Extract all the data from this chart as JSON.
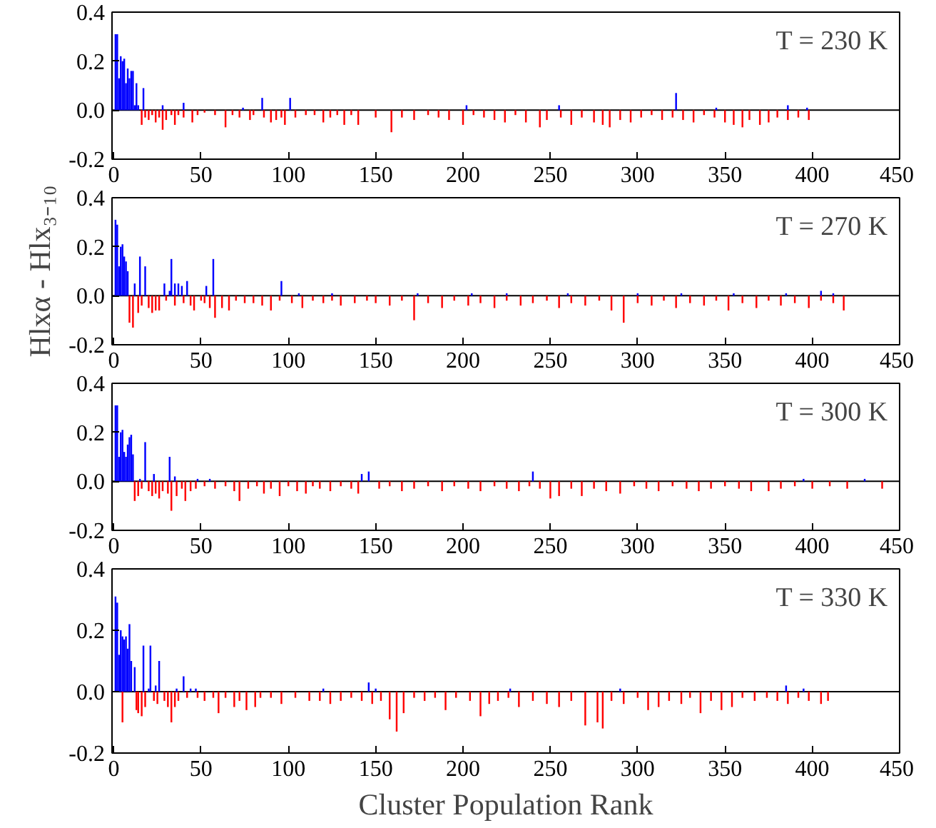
{
  "chart_data": [
    {
      "type": "bar",
      "annotations": [
        "T = 230 K"
      ],
      "xlim": [
        -1,
        450
      ],
      "xticks": [
        0,
        50,
        100,
        150,
        200,
        250,
        300,
        350,
        400,
        450
      ],
      "ylim": [
        -0.2,
        0.4
      ],
      "yticks": [
        {
          "value": -0.2,
          "label": "-0.2"
        },
        {
          "value": 0,
          "label": "0.0"
        },
        {
          "value": 0.2,
          "label": "0.2"
        },
        {
          "value": 0.4,
          "label": "0.4"
        }
      ],
      "ref_lines": [
        {
          "axis": "y",
          "value": 0,
          "color": "#000000"
        }
      ],
      "series": [
        {
          "color": "#0000ff",
          "x": [
            1,
            2,
            3,
            4,
            5,
            6,
            7,
            8,
            9,
            10,
            11,
            12,
            13,
            14,
            17,
            28,
            40,
            74,
            85,
            101,
            202,
            255,
            322,
            345,
            386,
            397
          ],
          "values": [
            0.31,
            0.31,
            0.13,
            0.22,
            0.2,
            0.21,
            0.11,
            0.17,
            0.13,
            0.16,
            0.16,
            0.02,
            0.11,
            0.02,
            0.09,
            0.02,
            0.03,
            0.01,
            0.05,
            0.05,
            0.02,
            0.02,
            0.07,
            0.01,
            0.02,
            0.01
          ]
        },
        {
          "color": "#ff0000",
          "x": [
            16,
            18,
            20,
            22,
            24,
            26,
            28,
            30,
            33,
            35,
            37,
            40,
            45,
            48,
            52,
            58,
            64,
            68,
            72,
            78,
            80,
            86,
            90,
            93,
            96,
            98,
            104,
            110,
            115,
            120,
            124,
            128,
            132,
            136,
            140,
            150,
            159,
            165,
            172,
            180,
            186,
            192,
            200,
            206,
            212,
            218,
            224,
            230,
            236,
            244,
            248,
            256,
            262,
            268,
            275,
            280,
            284,
            290,
            296,
            302,
            308,
            314,
            320,
            326,
            332,
            338,
            344,
            350,
            355,
            360,
            364,
            370,
            375,
            380,
            386,
            392,
            398
          ],
          "values": [
            -0.06,
            -0.03,
            -0.04,
            -0.02,
            -0.05,
            -0.03,
            -0.08,
            -0.04,
            -0.02,
            -0.06,
            -0.02,
            -0.03,
            -0.05,
            -0.02,
            -0.01,
            -0.02,
            -0.07,
            -0.02,
            -0.03,
            -0.04,
            -0.02,
            -0.03,
            -0.05,
            -0.04,
            -0.03,
            -0.06,
            -0.03,
            -0.02,
            -0.02,
            -0.05,
            -0.03,
            -0.02,
            -0.06,
            -0.02,
            -0.06,
            -0.03,
            -0.09,
            -0.03,
            -0.04,
            -0.02,
            -0.03,
            -0.04,
            -0.06,
            -0.02,
            -0.03,
            -0.04,
            -0.05,
            -0.02,
            -0.05,
            -0.07,
            -0.04,
            -0.03,
            -0.06,
            -0.03,
            -0.05,
            -0.06,
            -0.07,
            -0.04,
            -0.05,
            -0.03,
            -0.02,
            -0.04,
            -0.03,
            -0.04,
            -0.05,
            -0.02,
            -0.03,
            -0.05,
            -0.06,
            -0.07,
            -0.04,
            -0.06,
            -0.05,
            -0.03,
            -0.04,
            -0.03,
            -0.04
          ]
        }
      ]
    },
    {
      "type": "bar",
      "ylabel": "Hlxα - Hlx₃₋₁₀",
      "annotations": [
        "T = 270 K"
      ],
      "xlim": [
        -1,
        450
      ],
      "xticks": [
        0,
        50,
        100,
        150,
        200,
        250,
        300,
        350,
        400,
        450
      ],
      "ylim": [
        -0.2,
        0.4
      ],
      "yticks": [
        {
          "value": -0.2,
          "label": "-0.2"
        },
        {
          "value": 0,
          "label": "0.0"
        },
        {
          "value": 0.2,
          "label": "0.2"
        },
        {
          "value": 0.4,
          "label": "0.4"
        }
      ],
      "ref_lines": [
        {
          "axis": "y",
          "value": 0,
          "color": "#000000"
        }
      ],
      "series": [
        {
          "color": "#0000ff",
          "x": [
            1,
            2,
            3,
            4,
            5,
            6,
            7,
            8,
            12,
            15,
            18,
            29,
            32,
            33,
            35,
            37,
            39,
            42,
            53,
            57,
            96,
            106,
            125,
            174,
            205,
            225,
            260,
            300,
            325,
            355,
            385,
            405,
            412
          ],
          "values": [
            0.31,
            0.29,
            0.12,
            0.2,
            0.21,
            0.16,
            0.14,
            0.1,
            0.05,
            0.16,
            0.12,
            0.05,
            0.02,
            0.15,
            0.05,
            0.05,
            0.04,
            0.06,
            0.04,
            0.15,
            0.06,
            0.01,
            0.01,
            0.01,
            0.01,
            0.01,
            0.01,
            0.01,
            0.01,
            0.01,
            0.01,
            0.02,
            0.01
          ]
        },
        {
          "color": "#ff0000",
          "x": [
            9,
            11,
            14,
            16,
            20,
            22,
            24,
            26,
            30,
            35,
            40,
            44,
            46,
            50,
            52,
            55,
            58,
            62,
            66,
            70,
            75,
            80,
            85,
            90,
            95,
            102,
            108,
            114,
            120,
            125,
            130,
            138,
            145,
            150,
            158,
            165,
            172,
            180,
            188,
            195,
            203,
            210,
            218,
            225,
            233,
            240,
            248,
            255,
            262,
            270,
            278,
            285,
            292,
            300,
            308,
            315,
            322,
            330,
            338,
            345,
            352,
            360,
            368,
            375,
            382,
            390,
            398,
            405,
            412,
            418
          ],
          "values": [
            -0.11,
            -0.13,
            -0.07,
            -0.04,
            -0.05,
            -0.07,
            -0.06,
            -0.06,
            -0.02,
            -0.04,
            -0.03,
            -0.04,
            -0.06,
            -0.02,
            -0.03,
            -0.05,
            -0.09,
            -0.05,
            -0.06,
            -0.02,
            -0.03,
            -0.03,
            -0.04,
            -0.06,
            -0.02,
            -0.03,
            -0.05,
            -0.02,
            -0.03,
            -0.02,
            -0.04,
            -0.03,
            -0.02,
            -0.03,
            -0.04,
            -0.02,
            -0.1,
            -0.03,
            -0.05,
            -0.02,
            -0.04,
            -0.03,
            -0.05,
            -0.02,
            -0.04,
            -0.03,
            -0.02,
            -0.05,
            -0.03,
            -0.04,
            -0.02,
            -0.06,
            -0.11,
            -0.03,
            -0.04,
            -0.02,
            -0.05,
            -0.03,
            -0.04,
            -0.02,
            -0.06,
            -0.03,
            -0.05,
            -0.02,
            -0.04,
            -0.03,
            -0.05,
            -0.02,
            -0.03,
            -0.06
          ]
        }
      ]
    },
    {
      "type": "bar",
      "annotations": [
        "T = 300 K"
      ],
      "xlim": [
        -1,
        450
      ],
      "xticks": [
        0,
        50,
        100,
        150,
        200,
        250,
        300,
        350,
        400,
        450
      ],
      "ylim": [
        -0.2,
        0.4
      ],
      "yticks": [
        {
          "value": -0.2,
          "label": "-0.2"
        },
        {
          "value": 0,
          "label": "0.0"
        },
        {
          "value": 0.2,
          "label": "0.2"
        },
        {
          "value": 0.4,
          "label": "0.4"
        }
      ],
      "ref_lines": [
        {
          "axis": "y",
          "value": 0,
          "color": "#000000"
        }
      ],
      "series": [
        {
          "color": "#0000ff",
          "x": [
            1,
            2,
            3,
            4,
            5,
            6,
            7,
            8,
            9,
            10,
            11,
            15,
            18,
            23,
            32,
            35,
            48,
            55,
            142,
            146,
            240,
            395,
            430
          ],
          "values": [
            0.31,
            0.31,
            0.1,
            0.2,
            0.21,
            0.12,
            0.1,
            0.15,
            0.18,
            0.19,
            0.11,
            0.01,
            0.16,
            0.03,
            0.1,
            0.02,
            0.01,
            0.01,
            0.03,
            0.04,
            0.04,
            0.01,
            0.01
          ]
        },
        {
          "color": "#ff0000",
          "x": [
            12,
            14,
            16,
            20,
            22,
            24,
            26,
            28,
            31,
            33,
            36,
            39,
            41,
            44,
            47,
            52,
            58,
            64,
            69,
            72,
            77,
            82,
            86,
            90,
            95,
            100,
            105,
            110,
            114,
            118,
            124,
            130,
            136,
            140,
            152,
            158,
            165,
            172,
            180,
            188,
            195,
            203,
            210,
            218,
            225,
            232,
            238,
            244,
            250,
            255,
            262,
            268,
            275,
            282,
            290,
            298,
            305,
            312,
            320,
            328,
            335,
            342,
            350,
            358,
            365,
            375,
            382,
            390,
            400,
            410,
            420,
            440
          ],
          "values": [
            -0.08,
            -0.06,
            -0.03,
            -0.04,
            -0.06,
            -0.05,
            -0.07,
            -0.04,
            -0.05,
            -0.12,
            -0.06,
            -0.03,
            -0.08,
            -0.04,
            -0.03,
            -0.02,
            -0.03,
            -0.02,
            -0.04,
            -0.08,
            -0.03,
            -0.02,
            -0.05,
            -0.03,
            -0.06,
            -0.02,
            -0.04,
            -0.05,
            -0.02,
            -0.03,
            -0.04,
            -0.02,
            -0.03,
            -0.05,
            -0.03,
            -0.02,
            -0.04,
            -0.03,
            -0.02,
            -0.04,
            -0.02,
            -0.03,
            -0.04,
            -0.02,
            -0.03,
            -0.04,
            -0.02,
            -0.03,
            -0.07,
            -0.06,
            -0.03,
            -0.06,
            -0.03,
            -0.04,
            -0.05,
            -0.02,
            -0.03,
            -0.04,
            -0.02,
            -0.03,
            -0.04,
            -0.03,
            -0.02,
            -0.03,
            -0.04,
            -0.04,
            -0.03,
            -0.02,
            -0.03,
            -0.02,
            -0.03,
            -0.03
          ]
        }
      ]
    },
    {
      "type": "bar",
      "xlabel": "Cluster Population Rank",
      "annotations": [
        "T = 330 K"
      ],
      "xlim": [
        -1,
        450
      ],
      "xticks": [
        0,
        50,
        100,
        150,
        200,
        250,
        300,
        350,
        400,
        450
      ],
      "ylim": [
        -0.2,
        0.4
      ],
      "yticks": [
        {
          "value": -0.2,
          "label": "-0.2"
        },
        {
          "value": 0,
          "label": "0.0"
        },
        {
          "value": 0.2,
          "label": "0.2"
        },
        {
          "value": 0.4,
          "label": "0.4"
        }
      ],
      "ref_lines": [
        {
          "axis": "y",
          "value": 0,
          "color": "#000000"
        }
      ],
      "series": [
        {
          "color": "#0000ff",
          "x": [
            1,
            2,
            3,
            4,
            5,
            6,
            7,
            8,
            9,
            10,
            12,
            17,
            20,
            21,
            24,
            26,
            36,
            40,
            44,
            47,
            120,
            146,
            150,
            227,
            290,
            385,
            395
          ],
          "values": [
            0.31,
            0.29,
            0.12,
            0.2,
            0.18,
            0.17,
            0.18,
            0.14,
            0.22,
            0.1,
            0.08,
            0.15,
            0.01,
            0.15,
            0.02,
            0.1,
            0.01,
            0.05,
            0.01,
            0.01,
            0.01,
            0.03,
            0.01,
            0.01,
            0.01,
            0.02,
            0.01
          ]
        },
        {
          "color": "#ff0000",
          "x": [
            5,
            13,
            14,
            16,
            18,
            23,
            25,
            29,
            31,
            33,
            35,
            37,
            42,
            48,
            52,
            57,
            60,
            64,
            69,
            72,
            76,
            81,
            84,
            90,
            96,
            104,
            112,
            118,
            124,
            130,
            136,
            142,
            148,
            153,
            158,
            162,
            166,
            172,
            178,
            184,
            190,
            196,
            204,
            210,
            215,
            220,
            226,
            232,
            240,
            248,
            255,
            262,
            270,
            277,
            280,
            285,
            292,
            300,
            306,
            312,
            318,
            325,
            330,
            336,
            342,
            348,
            354,
            360,
            367,
            374,
            380,
            386,
            392,
            398,
            405,
            409
          ],
          "values": [
            -0.1,
            -0.06,
            -0.07,
            -0.08,
            -0.05,
            -0.03,
            -0.04,
            -0.03,
            -0.05,
            -0.1,
            -0.05,
            -0.03,
            -0.02,
            -0.02,
            -0.03,
            -0.02,
            -0.07,
            -0.02,
            -0.05,
            -0.03,
            -0.06,
            -0.05,
            -0.02,
            -0.02,
            -0.04,
            -0.02,
            -0.03,
            -0.03,
            -0.04,
            -0.03,
            -0.02,
            -0.03,
            -0.04,
            -0.03,
            -0.09,
            -0.13,
            -0.07,
            -0.02,
            -0.03,
            -0.02,
            -0.06,
            -0.02,
            -0.03,
            -0.08,
            -0.04,
            -0.03,
            -0.02,
            -0.05,
            -0.03,
            -0.04,
            -0.05,
            -0.03,
            -0.11,
            -0.1,
            -0.12,
            -0.03,
            -0.04,
            -0.02,
            -0.06,
            -0.05,
            -0.03,
            -0.04,
            -0.02,
            -0.07,
            -0.03,
            -0.06,
            -0.05,
            -0.02,
            -0.03,
            -0.02,
            -0.03,
            -0.04,
            -0.02,
            -0.03,
            -0.04,
            -0.03
          ]
        }
      ]
    }
  ]
}
